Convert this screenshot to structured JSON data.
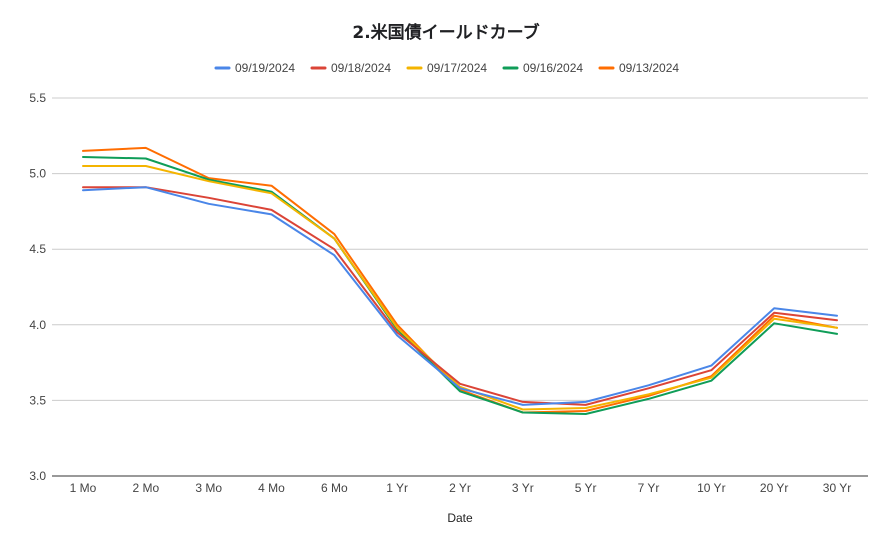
{
  "chart_data": {
    "type": "line",
    "title": "2.米国債イールドカーブ",
    "xlabel": "Date",
    "ylabel": "",
    "ylim": [
      3.0,
      5.5
    ],
    "yticks": [
      "3.0",
      "3.5",
      "4.0",
      "4.5",
      "5.0",
      "5.5"
    ],
    "grid": true,
    "legend_position": "top",
    "categories": [
      "1 Mo",
      "2 Mo",
      "3 Mo",
      "4 Mo",
      "6 Mo",
      "1 Yr",
      "2 Yr",
      "3 Yr",
      "5 Yr",
      "7 Yr",
      "10 Yr",
      "20 Yr",
      "30 Yr"
    ],
    "series": [
      {
        "name": "09/19/2024",
        "color": "#4a86e8",
        "values": [
          4.89,
          4.91,
          4.8,
          4.73,
          4.46,
          3.93,
          3.58,
          3.47,
          3.49,
          3.6,
          3.73,
          4.11,
          4.06
        ]
      },
      {
        "name": "09/18/2024",
        "color": "#db4437",
        "values": [
          4.91,
          4.91,
          4.84,
          4.76,
          4.5,
          3.95,
          3.61,
          3.49,
          3.47,
          3.58,
          3.7,
          4.08,
          4.03
        ]
      },
      {
        "name": "09/17/2024",
        "color": "#f4b400",
        "values": [
          5.05,
          5.05,
          4.95,
          4.87,
          4.57,
          3.98,
          3.59,
          3.44,
          3.45,
          3.54,
          3.65,
          4.04,
          3.98
        ]
      },
      {
        "name": "09/16/2024",
        "color": "#0f9d58",
        "values": [
          5.11,
          5.1,
          4.96,
          4.88,
          4.57,
          3.97,
          3.56,
          3.42,
          3.41,
          3.51,
          3.63,
          4.01,
          3.94
        ]
      },
      {
        "name": "09/13/2024",
        "color": "#ff6d01",
        "values": [
          5.15,
          5.17,
          4.97,
          4.92,
          4.6,
          4.0,
          3.57,
          3.42,
          3.43,
          3.53,
          3.66,
          4.06,
          3.98
        ]
      }
    ]
  }
}
